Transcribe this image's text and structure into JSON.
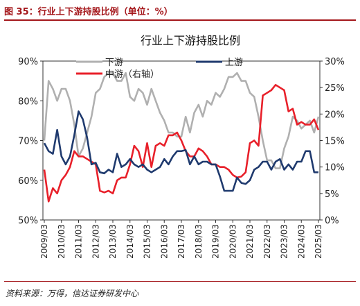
{
  "figure_caption": "图 35：行业上下游持股比例（单位：%）",
  "source_note": "资料来源：万得，信达证券研发中心",
  "colors": {
    "caption": "#a4161a",
    "downstream": "#b0b0b0",
    "midstream": "#e8202a",
    "upstream": "#1f3a6e"
  },
  "chart_data": {
    "type": "line",
    "title": "行业上下游持股比例",
    "x": [
      "2009/03",
      "2009/06",
      "2009/09",
      "2009/12",
      "2010/03",
      "2010/06",
      "2010/09",
      "2010/12",
      "2011/03",
      "2011/06",
      "2011/09",
      "2011/12",
      "2012/03",
      "2012/06",
      "2012/09",
      "2012/12",
      "2013/03",
      "2013/06",
      "2013/09",
      "2013/12",
      "2014/03",
      "2014/06",
      "2014/09",
      "2014/12",
      "2015/03",
      "2015/06",
      "2015/09",
      "2015/12",
      "2016/03",
      "2016/06",
      "2016/09",
      "2016/12",
      "2017/03",
      "2017/06",
      "2017/09",
      "2017/12",
      "2018/03",
      "2018/06",
      "2018/09",
      "2018/12",
      "2019/03",
      "2019/06",
      "2019/09",
      "2019/12",
      "2020/03",
      "2020/06",
      "2020/09",
      "2020/12",
      "2021/03",
      "2021/06",
      "2021/09",
      "2021/12",
      "2022/03",
      "2022/06",
      "2022/09",
      "2022/12",
      "2023/03",
      "2023/06",
      "2023/09",
      "2023/12",
      "2024/03",
      "2024/06",
      "2024/09",
      "2024/12",
      "2025/03"
    ],
    "x_tick_labels": [
      "2009/03",
      "2010/03",
      "2011/03",
      "2012/03",
      "2013/03",
      "2014/03",
      "2015/03",
      "2016/03",
      "2017/03",
      "2018/03",
      "2019/03",
      "2020/03",
      "2021/03",
      "2022/03",
      "2023/03",
      "2024/03",
      "2025/03"
    ],
    "y_left": {
      "range": [
        50,
        90
      ],
      "ticks": [
        "50%",
        "60%",
        "70%",
        "80%",
        "90%"
      ]
    },
    "y_right": {
      "range": [
        0,
        30
      ],
      "ticks": [
        "0%",
        "5%",
        "10%",
        "15%",
        "20%",
        "25%",
        "30%"
      ]
    },
    "legend": "top-center",
    "series": [
      {
        "name": "下游",
        "axis": "left",
        "values": [
          70,
          85,
          83,
          80,
          83,
          83,
          80,
          74,
          66,
          68,
          72,
          76,
          82,
          83,
          86,
          87,
          87,
          85,
          85,
          87,
          81,
          80,
          83,
          82,
          79,
          83,
          80,
          77,
          75,
          72,
          72,
          71,
          71,
          76,
          72,
          77,
          79,
          76,
          80,
          79,
          82,
          81,
          83,
          86,
          86,
          87,
          85,
          85,
          82,
          81,
          76,
          70,
          65,
          65,
          63,
          63,
          68,
          71,
          76,
          75,
          73,
          74,
          75,
          72,
          76
        ]
      },
      {
        "name": "上游",
        "axis": "right",
        "values": [
          14.5,
          13,
          12.5,
          17,
          12,
          10.5,
          12,
          16,
          20.5,
          19,
          15.5,
          10.5,
          10.8,
          9,
          8.8,
          9.5,
          9,
          12.5,
          10,
          10.5,
          11.5,
          10.5,
          10,
          10.5,
          9.5,
          9,
          9.5,
          10,
          11.5,
          10.5,
          12,
          13,
          13,
          13.2,
          10.5,
          12,
          10.5,
          11,
          11,
          10.5,
          10.5,
          8.2,
          5.5,
          5.5,
          5.5,
          8,
          7,
          6.8,
          7.5,
          9.5,
          10,
          11,
          11,
          9.5,
          11,
          11.5,
          9.5,
          10.5,
          9.5,
          11,
          11,
          13,
          13,
          9,
          9
        ]
      },
      {
        "name": "中游（右轴）",
        "axis": "right",
        "values": [
          9.5,
          3.5,
          6,
          5,
          7.5,
          8.5,
          10,
          13,
          12,
          12,
          11.5,
          11,
          10.5,
          5.5,
          5.2,
          5.5,
          5,
          7.5,
          8,
          8,
          10.5,
          14,
          13,
          10,
          14.5,
          10,
          14,
          14.5,
          14,
          16,
          16,
          16.5,
          15,
          13,
          12,
          12,
          13.5,
          13,
          12,
          10.5,
          10.5,
          10,
          10,
          9.5,
          8.5,
          8,
          8.2,
          9,
          14.5,
          15,
          14,
          23.5,
          24,
          24.5,
          25.5,
          25,
          24.5,
          20.5,
          21,
          18,
          18.5,
          18,
          18,
          19,
          17
        ]
      }
    ]
  }
}
